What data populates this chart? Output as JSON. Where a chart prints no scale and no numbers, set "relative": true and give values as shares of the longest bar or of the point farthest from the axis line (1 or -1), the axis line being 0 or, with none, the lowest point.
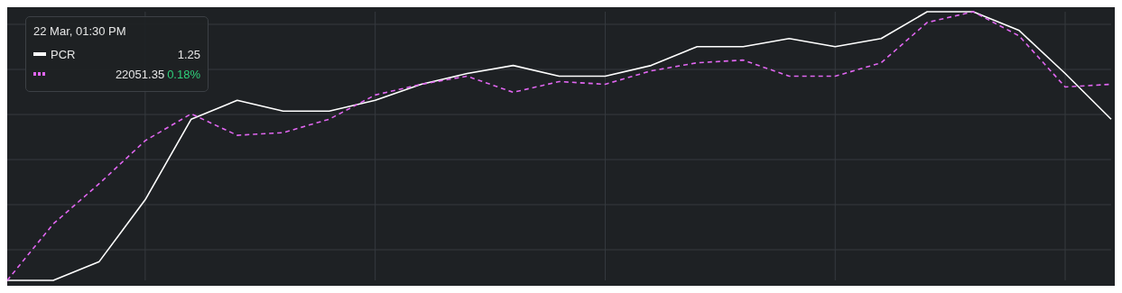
{
  "chart_data": {
    "type": "line",
    "relative": true,
    "categories": [
      null,
      null,
      null,
      null,
      null,
      null,
      null,
      null,
      null,
      null,
      null,
      null,
      null,
      null,
      null,
      null,
      null,
      null,
      null,
      null,
      null,
      null,
      null,
      null,
      null
    ],
    "series": [
      {
        "name": "PCR",
        "color": "#ffffff",
        "line_style": "solid",
        "values": [
          0,
          0,
          0.07,
          0.3,
          0.6,
          0.67,
          0.63,
          0.63,
          0.67,
          0.73,
          0.77,
          0.8,
          0.76,
          0.76,
          0.8,
          0.87,
          0.87,
          0.9,
          0.87,
          0.9,
          1,
          1,
          0.93,
          0.77,
          0.6
        ]
      },
      {
        "color": "#e066f0",
        "line_style": "dashed",
        "values": [
          0,
          0.21,
          0.36,
          0.52,
          0.62,
          0.54,
          0.55,
          0.6,
          0.69,
          0.73,
          0.76,
          0.7,
          0.74,
          0.73,
          0.78,
          0.81,
          0.82,
          0.76,
          0.76,
          0.81,
          0.96,
          1,
          0.91,
          0.72,
          0.73
        ]
      }
    ],
    "annotations": [
      "22 Mar, 01:30 PM",
      "1.25",
      "22051.35",
      "0.18%"
    ],
    "grid": true,
    "legend": "top left",
    "marker": "none"
  }
}
